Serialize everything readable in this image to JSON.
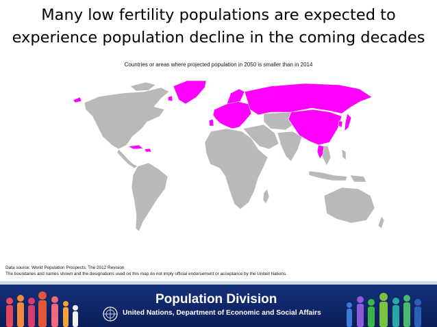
{
  "slide": {
    "title_line1": "Many low fertility populations are expected to",
    "title_line2": "experience population decline in the coming decades"
  },
  "map": {
    "caption": "Countries or areas where projected population in 2050 is smaller than in 2014",
    "highlight_color": "#ff00ff",
    "land_color": "#b9b9b9",
    "border_color": "#ffffff",
    "highlighted_regions": [
      "Greenland",
      "Europe",
      "Russia",
      "China",
      "Japan",
      "Korea",
      "Thailand",
      "Cuba",
      "Caribbean islands",
      "Portugal"
    ]
  },
  "notes": {
    "source": "Data source: World Population Prospects: The 2012 Revision",
    "disclaimer": "The boundaries and names shown and the designations used on this map do not imply official endorsement or acceptance by the United Nations."
  },
  "banner": {
    "title": "Population Division",
    "subtitle": "United Nations, Department of Economic and Social Affairs",
    "background": "#132c72"
  }
}
